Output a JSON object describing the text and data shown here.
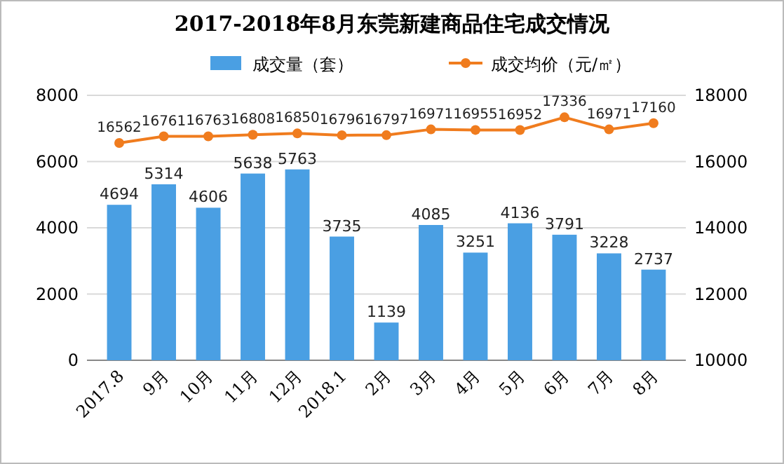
{
  "chart_data": {
    "type": "bar",
    "title": "2017-2018年8月东莞新建商品住宅成交情况",
    "categories": [
      "2017.8",
      "9月",
      "10月",
      "11月",
      "12月",
      "2018.1",
      "2月",
      "3月",
      "4月",
      "5月",
      "6月",
      "7月",
      "8月"
    ],
    "series": [
      {
        "name": "成交量（套）",
        "color": "#4a9fe3",
        "values": [
          4694,
          5314,
          4606,
          5638,
          5763,
          3735,
          1139,
          4085,
          3251,
          4136,
          3791,
          3228,
          2737
        ]
      },
      {
        "name": "成交均价（元/㎡）",
        "type": "line",
        "axis": "y2",
        "color": "#f07c1e",
        "values": [
          16562,
          16761,
          16763,
          16808,
          16850,
          16796,
          16797,
          16971,
          16955,
          16952,
          17336,
          16971,
          17160
        ]
      }
    ],
    "ylim": [
      0,
      8000
    ],
    "yticks": [
      0,
      2000,
      4000,
      6000,
      8000
    ],
    "y2lim": [
      10000,
      18000
    ],
    "y2ticks": [
      10000,
      12000,
      14000,
      16000,
      18000
    ],
    "grid": "y",
    "legend": "top",
    "marker": "circle",
    "line_style": "solid",
    "data_labels": true
  }
}
